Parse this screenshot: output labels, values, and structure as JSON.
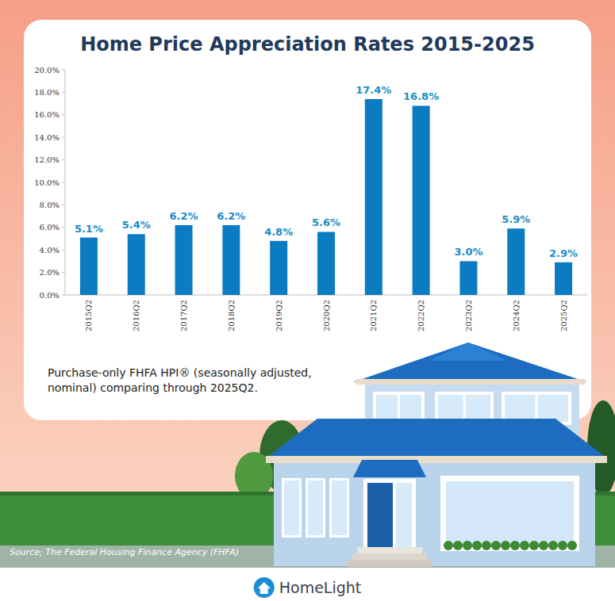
{
  "chart_data": {
    "type": "bar",
    "title": "Home Price Appreciation Rates 2015-2025",
    "categories": [
      "2015Q2",
      "2016Q2",
      "2017Q2",
      "2018Q2",
      "2019Q2",
      "2020Q2",
      "2021Q2",
      "2022Q2",
      "2023Q2",
      "2024Q2",
      "2025Q2"
    ],
    "values": [
      5.1,
      5.4,
      6.2,
      6.2,
      4.8,
      5.6,
      17.4,
      16.8,
      3.0,
      5.9,
      2.9
    ],
    "value_labels": [
      "5.1%",
      "5.4%",
      "6.2%",
      "6.2%",
      "4.8%",
      "5.6%",
      "17.4%",
      "16.8%",
      "3.0%",
      "5.9%",
      "2.9%"
    ],
    "color": "#0b7cc1",
    "ylim": [
      0,
      20
    ],
    "yticks": [
      {
        "value": 0,
        "label": "0.0%"
      },
      {
        "value": 2,
        "label": "2.0%"
      },
      {
        "value": 4,
        "label": "4.0%"
      },
      {
        "value": 6,
        "label": "6.0%"
      },
      {
        "value": 8,
        "label": "8.0%"
      },
      {
        "value": 10,
        "label": "10.0%"
      },
      {
        "value": 12,
        "label": "12.0%"
      },
      {
        "value": 14,
        "label": "14.0%"
      },
      {
        "value": 16,
        "label": "16.0%"
      },
      {
        "value": 18,
        "label": "18.0%"
      },
      {
        "value": 20,
        "label": "20.0%"
      }
    ],
    "grid": false,
    "data_labels": true,
    "annotations": [
      "Purchase-only FHFA HPI® (seasonally adjusted, nominal) comparing through 2025Q2.",
      "Source; The Federal Housing Finance Agency (FHFA)",
      "HomeLight"
    ]
  }
}
